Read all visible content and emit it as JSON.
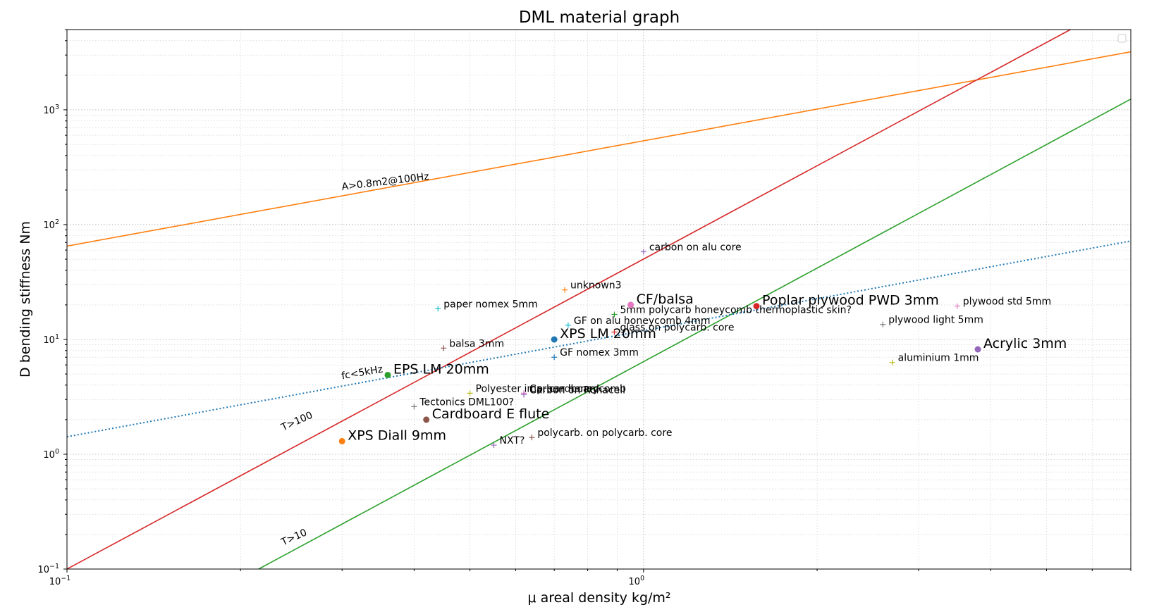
{
  "chart_data": {
    "type": "scatter",
    "title": "DML material graph",
    "xlabel": "μ areal density kg/m²",
    "ylabel": "D bending stiffness Nm",
    "xscale": "log",
    "yscale": "log",
    "xlim": [
      0.1,
      7.0
    ],
    "ylim": [
      0.1,
      5000
    ],
    "grid": true,
    "legend": "top-right (empty)",
    "x_ticks": [
      {
        "value": 0.1,
        "base": "10",
        "exp": "−1"
      },
      {
        "value": 1,
        "base": "10",
        "exp": "0"
      }
    ],
    "y_ticks": [
      {
        "value": 0.1,
        "base": "10",
        "exp": "−1"
      },
      {
        "value": 1,
        "base": "10",
        "exp": "0"
      },
      {
        "value": 10,
        "base": "10",
        "exp": "1"
      },
      {
        "value": 100,
        "base": "10",
        "exp": "2"
      },
      {
        "value": 1000,
        "base": "10",
        "exp": "3"
      }
    ],
    "lines": [
      {
        "name": "A>0.8m2@100Hz",
        "color": "#ff7f0e",
        "style": "solid",
        "points": [
          [
            0.1,
            65
          ],
          [
            7.0,
            3200
          ]
        ],
        "label_at": [
          0.3,
          200
        ],
        "label_rotation": -7
      },
      {
        "name": "T>100",
        "color": "#d62728",
        "style": "solid",
        "points": [
          [
            0.1,
            0.1
          ],
          [
            5.5,
            5000
          ]
        ],
        "label_at": [
          0.237,
          1.6
        ],
        "label_rotation": -24
      },
      {
        "name": "T>10",
        "color": "#2ca02c",
        "style": "solid",
        "points": [
          [
            0.215,
            0.1
          ],
          [
            7.0,
            1240
          ]
        ],
        "label_at": [
          0.237,
          0.16
        ],
        "label_rotation": -24
      },
      {
        "name": "fc<5kHz",
        "color": "#1f77b4",
        "style": "dotted",
        "points": [
          [
            0.1,
            1.42
          ],
          [
            7.0,
            72
          ]
        ],
        "label_at": [
          0.3,
          4.5
        ],
        "label_rotation": -10
      }
    ],
    "featured_points": [
      {
        "label": "XPS Diall 9mm",
        "x": 0.3,
        "y": 1.3,
        "color": "#ff7f0e"
      },
      {
        "label": "EPS LM 20mm",
        "x": 0.36,
        "y": 4.9,
        "color": "#2ca02c"
      },
      {
        "label": "Cardboard E flute",
        "x": 0.42,
        "y": 2.0,
        "color": "#8c564b"
      },
      {
        "label": "XPS LM 20mm",
        "x": 0.7,
        "y": 10,
        "color": "#1f77b4"
      },
      {
        "label": "CF/balsa",
        "x": 0.95,
        "y": 20,
        "color": "#e377c2"
      },
      {
        "label": "Poplar plywood PWD 3mm",
        "x": 1.57,
        "y": 19.5,
        "color": "#d62728"
      },
      {
        "label": "Acrylic 3mm",
        "x": 3.8,
        "y": 8.2,
        "color": "#9467bd"
      }
    ],
    "candidate_points": [
      {
        "label": "paper nomex 5mm",
        "x": 0.44,
        "y": 18.5,
        "color": "#17becf"
      },
      {
        "label": "balsa 3mm",
        "x": 0.45,
        "y": 8.4,
        "color": "#8c564b"
      },
      {
        "label": "Tectonics DML100?",
        "x": 0.4,
        "y": 2.6,
        "color": "#7f7f7f"
      },
      {
        "label": "Polyester imp. cardboard",
        "x": 0.5,
        "y": 3.4,
        "color": "#bcbd22"
      },
      {
        "label": "Carbon honeycomb",
        "x": 0.62,
        "y": 3.4,
        "color": "#e377c2"
      },
      {
        "label": "Carbon on Rohacell",
        "x": 0.62,
        "y": 3.3,
        "color": "#9467bd"
      },
      {
        "label": "NXT?",
        "x": 0.55,
        "y": 1.2,
        "color": "#9467bd"
      },
      {
        "label": "polycarb. on polycarb. core",
        "x": 0.64,
        "y": 1.4,
        "color": "#8c564b"
      },
      {
        "label": "unknown3",
        "x": 0.73,
        "y": 27,
        "color": "#ff7f0e"
      },
      {
        "label": "GF on alu honeycomb 4mm",
        "x": 0.74,
        "y": 13.3,
        "color": "#17becf"
      },
      {
        "label": "GF nomex 3mm",
        "x": 0.7,
        "y": 7.0,
        "color": "#1f77b4"
      },
      {
        "label": "5mm polycarb honeycomb thermoplastic skin?",
        "x": 0.89,
        "y": 16.5,
        "color": "#2ca02c"
      },
      {
        "label": "glass on polycarb. core",
        "x": 0.89,
        "y": 11.6,
        "color": "#d62728"
      },
      {
        "label": "carbon on alu core",
        "x": 1.0,
        "y": 58,
        "color": "#9467bd"
      },
      {
        "label": "plywood std 5mm",
        "x": 3.5,
        "y": 19.5,
        "color": "#e377c2"
      },
      {
        "label": "plywood light 5mm",
        "x": 2.6,
        "y": 13.5,
        "color": "#7f7f7f"
      },
      {
        "label": "aluminium 1mm",
        "x": 2.7,
        "y": 6.3,
        "color": "#bcbd22"
      }
    ]
  }
}
